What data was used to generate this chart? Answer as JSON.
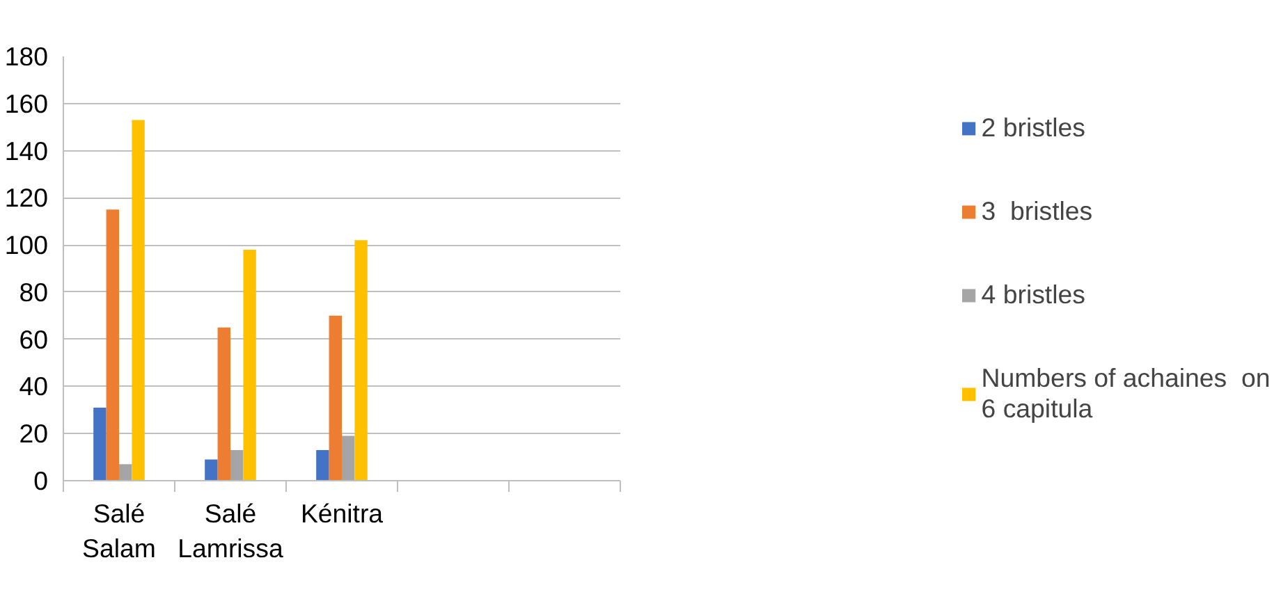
{
  "chart_data": {
    "type": "bar",
    "categories": [
      "Salé Salam",
      "Salé Lamrissa",
      "Kénitra",
      null,
      null
    ],
    "series": [
      {
        "name": "2 bristles",
        "color": "#4472c4",
        "values": [
          31,
          9,
          13,
          null,
          null
        ]
      },
      {
        "name": "3  bristles",
        "color": "#ed7d31",
        "values": [
          115,
          65,
          70,
          null,
          null
        ]
      },
      {
        "name": "4 bristles",
        "color": "#a5a5a5",
        "values": [
          7,
          13,
          19,
          null,
          null
        ]
      },
      {
        "name": "Numbers of achaines  on 6 capitula",
        "color": "#ffc000",
        "values": [
          153,
          98,
          102,
          null,
          null
        ]
      }
    ],
    "ylim": [
      0,
      180
    ],
    "yticks": [
      0,
      20,
      40,
      60,
      80,
      100,
      120,
      140,
      160,
      180
    ],
    "grid": "y",
    "legend": "right"
  }
}
